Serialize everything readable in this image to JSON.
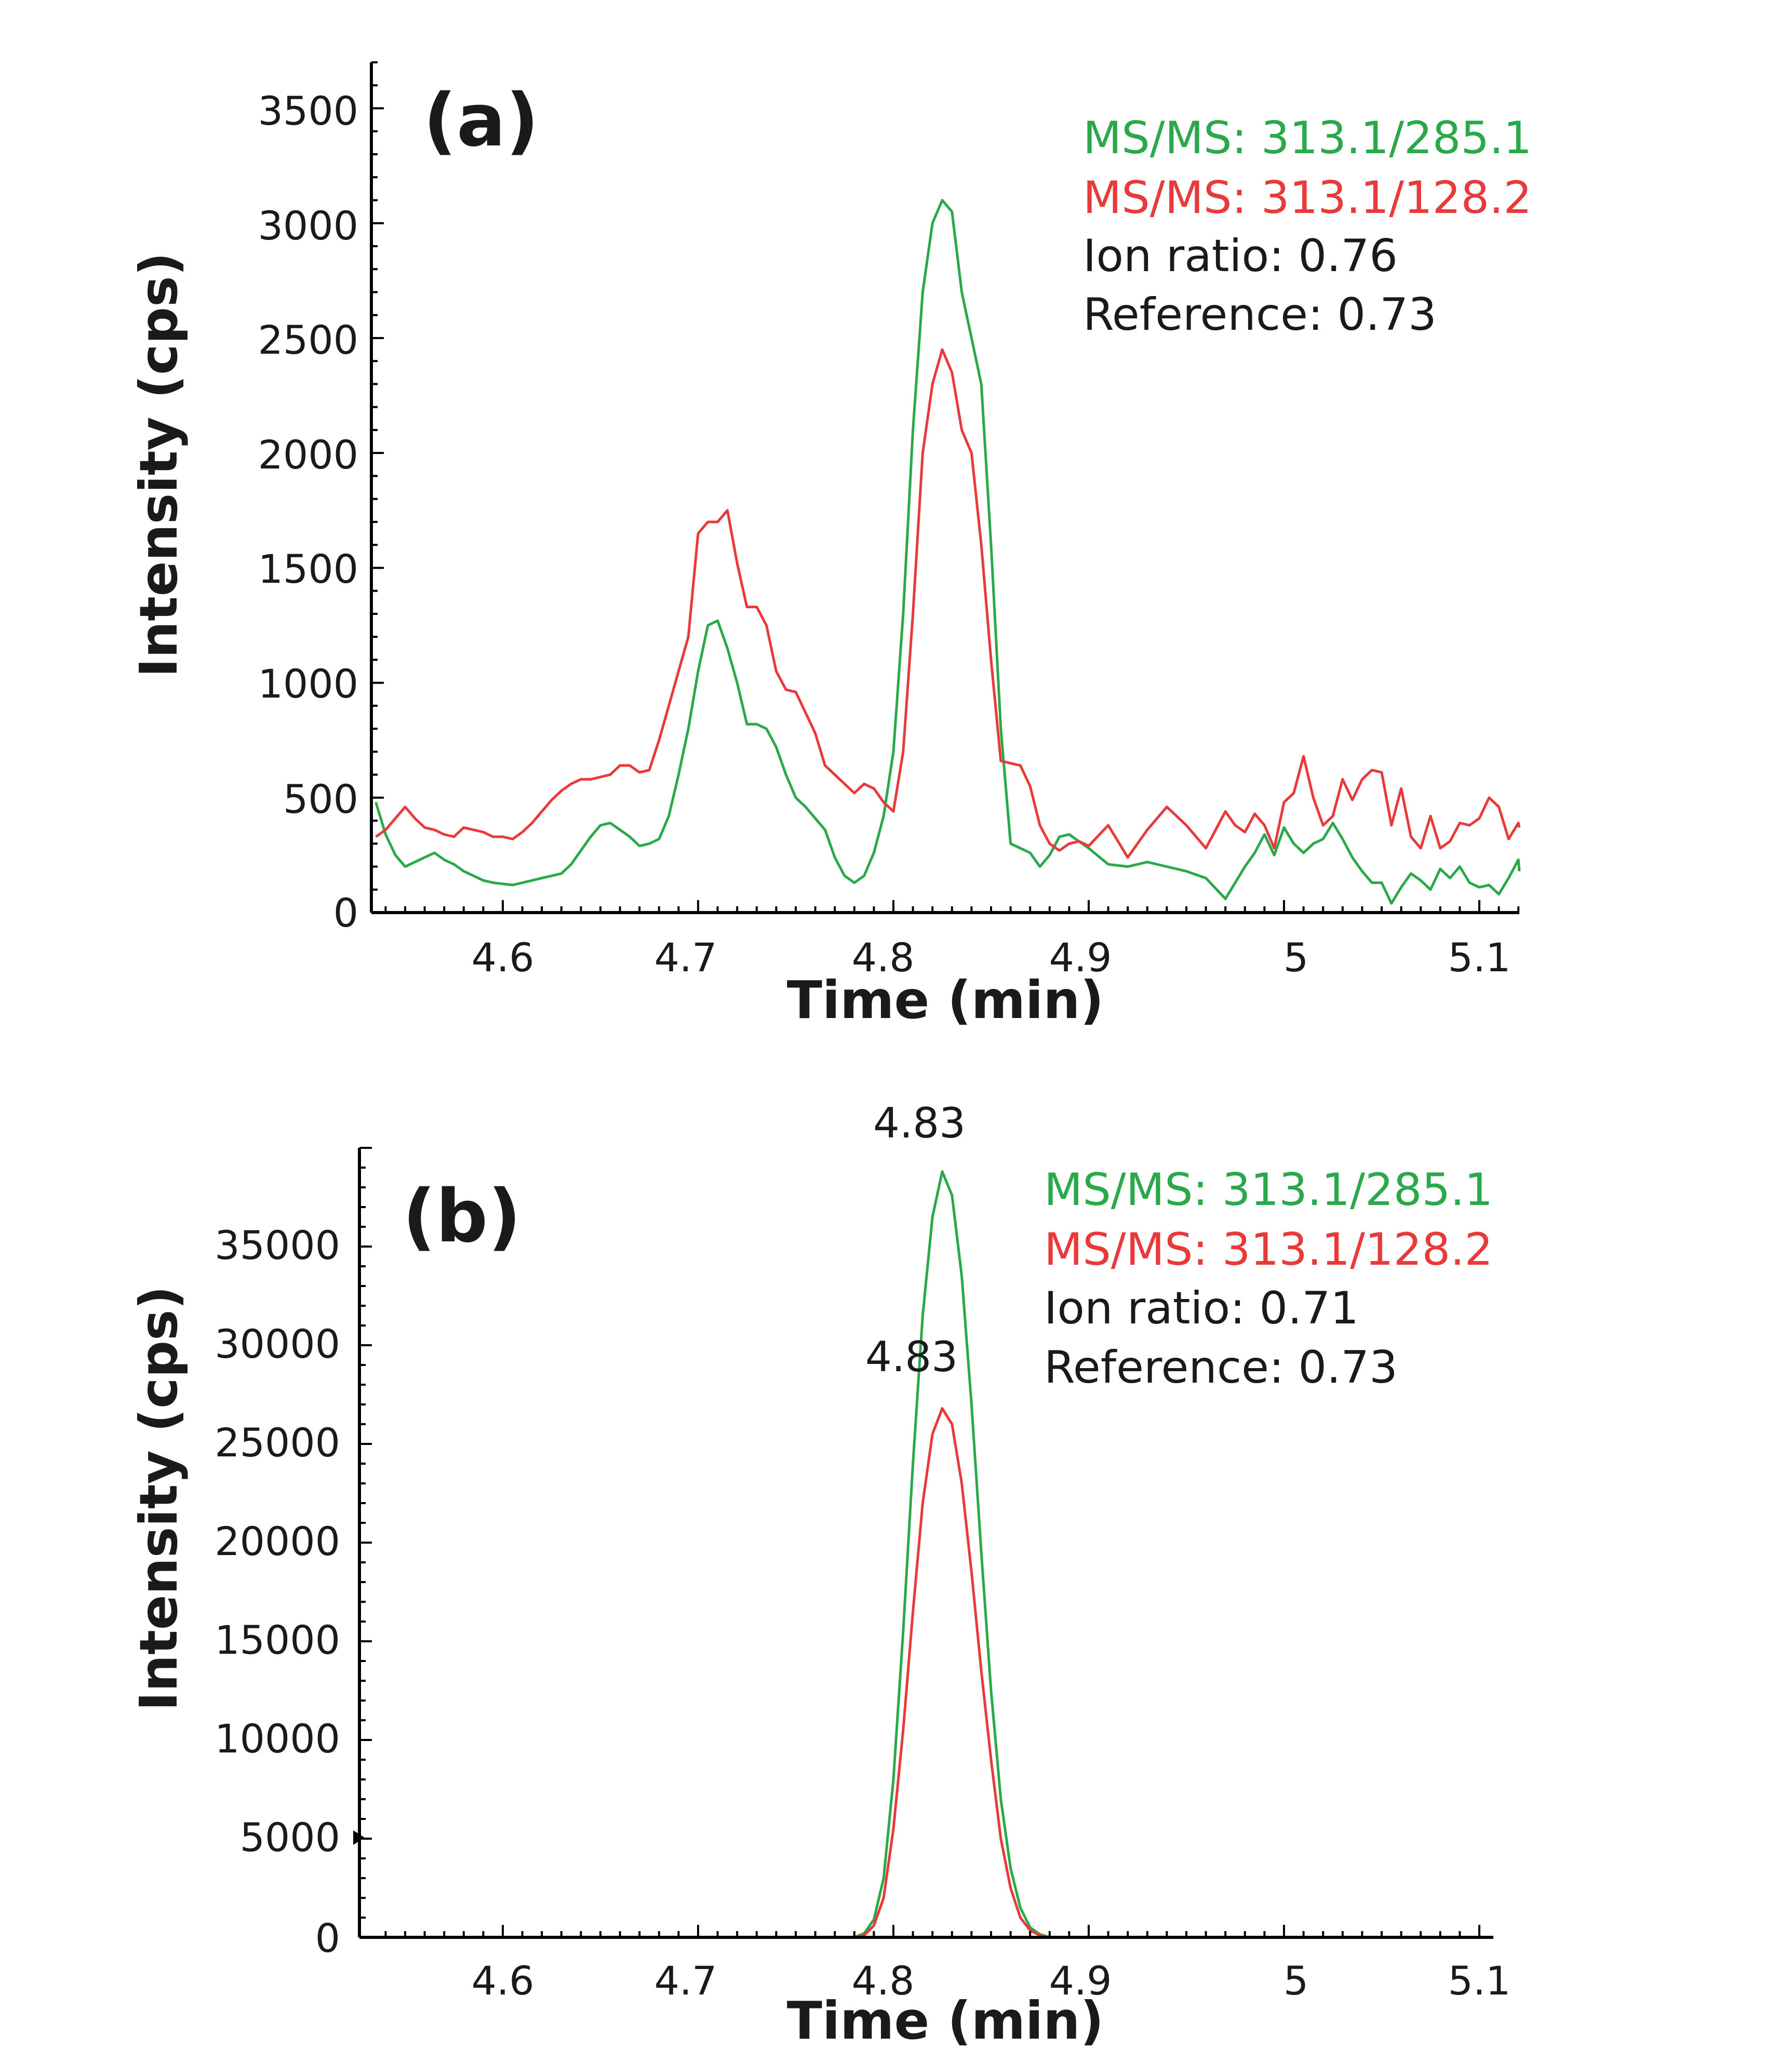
{
  "chart_data": [
    {
      "type": "line",
      "panel_label": "(a)",
      "xlabel": "Time (min)",
      "ylabel": "Intensity (cps)",
      "xlim": [
        4.535,
        5.125
      ],
      "ylim": [
        0,
        3700
      ],
      "xticks": [
        4.6,
        4.7,
        4.8,
        4.9,
        5.0,
        5.1
      ],
      "xtick_labels": [
        "4.6",
        "4.7",
        "4.8",
        "4.9",
        "5",
        "5.1"
      ],
      "yticks": [
        0,
        500,
        1000,
        1500,
        2000,
        2500,
        3000,
        3500
      ],
      "ytick_labels": [
        "0",
        "500",
        "1000",
        "1500",
        "2000",
        "2500",
        "3000",
        "3500"
      ],
      "legend": [
        {
          "text": "MS/MS: 313.1/285.1",
          "color": "#2aa84a"
        },
        {
          "text": "MS/MS: 313.1/128.2",
          "color": "#e83a3a"
        },
        {
          "text": "Ion ratio: 0.76",
          "color": "#1a1a1a"
        },
        {
          "text": "Reference: 0.73",
          "color": "#1a1a1a"
        }
      ],
      "series": [
        {
          "name": "MS/MS: 313.1/285.1",
          "color": "#2aa84a",
          "x": [
            4.535,
            4.54,
            4.545,
            4.55,
            4.555,
            4.56,
            4.565,
            4.57,
            4.575,
            4.58,
            4.585,
            4.59,
            4.595,
            4.6,
            4.605,
            4.61,
            4.615,
            4.62,
            4.625,
            4.63,
            4.635,
            4.64,
            4.645,
            4.65,
            4.655,
            4.66,
            4.665,
            4.67,
            4.675,
            4.68,
            4.685,
            4.69,
            4.695,
            4.7,
            4.705,
            4.71,
            4.715,
            4.72,
            4.725,
            4.73,
            4.735,
            4.74,
            4.745,
            4.75,
            4.755,
            4.76,
            4.765,
            4.77,
            4.775,
            4.78,
            4.785,
            4.79,
            4.795,
            4.8,
            4.805,
            4.81,
            4.815,
            4.82,
            4.825,
            4.83,
            4.835,
            4.84,
            4.845,
            4.85,
            4.855,
            4.86,
            4.865,
            4.87,
            4.875,
            4.88,
            4.885,
            4.89,
            4.895,
            4.9,
            4.91,
            4.92,
            4.93,
            4.94,
            4.95,
            4.96,
            4.97,
            4.975,
            4.98,
            4.985,
            4.99,
            4.995,
            5.0,
            5.005,
            5.01,
            5.015,
            5.02,
            5.025,
            5.03,
            5.035,
            5.04,
            5.045,
            5.05,
            5.055,
            5.06,
            5.065,
            5.07,
            5.075,
            5.08,
            5.085,
            5.09,
            5.095,
            5.1,
            5.105,
            5.11,
            5.115,
            5.12,
            5.125
          ],
          "y": [
            480,
            340,
            250,
            200,
            220,
            240,
            260,
            230,
            210,
            180,
            160,
            140,
            130,
            125,
            120,
            130,
            140,
            150,
            160,
            170,
            210,
            270,
            330,
            380,
            390,
            360,
            330,
            290,
            300,
            320,
            420,
            600,
            800,
            1050,
            1250,
            1270,
            1150,
            1000,
            820,
            820,
            800,
            720,
            600,
            500,
            460,
            410,
            360,
            240,
            160,
            130,
            160,
            260,
            420,
            700,
            1300,
            2100,
            2700,
            3000,
            3100,
            3050,
            2700,
            2500,
            2300,
            1600,
            800,
            300,
            280,
            260,
            200,
            250,
            330,
            340,
            310,
            280,
            210,
            200,
            220,
            200,
            180,
            150,
            60,
            130,
            200,
            260,
            340,
            250,
            370,
            300,
            260,
            300,
            320,
            390,
            320,
            240,
            180,
            130,
            130,
            40,
            110,
            170,
            140,
            100,
            190,
            150,
            200,
            130,
            110,
            120,
            80,
            150,
            230,
            180
          ]
        },
        {
          "name": "MS/MS: 313.1/128.2",
          "color": "#e83a3a",
          "x": [
            4.535,
            4.54,
            4.545,
            4.55,
            4.555,
            4.56,
            4.565,
            4.57,
            4.575,
            4.58,
            4.585,
            4.59,
            4.595,
            4.6,
            4.605,
            4.61,
            4.615,
            4.62,
            4.625,
            4.63,
            4.635,
            4.64,
            4.645,
            4.65,
            4.655,
            4.66,
            4.665,
            4.67,
            4.675,
            4.68,
            4.685,
            4.69,
            4.695,
            4.7,
            4.705,
            4.71,
            4.715,
            4.72,
            4.725,
            4.73,
            4.735,
            4.74,
            4.745,
            4.75,
            4.755,
            4.76,
            4.765,
            4.77,
            4.775,
            4.78,
            4.785,
            4.79,
            4.795,
            4.8,
            4.805,
            4.81,
            4.815,
            4.82,
            4.825,
            4.83,
            4.835,
            4.84,
            4.845,
            4.85,
            4.855,
            4.86,
            4.865,
            4.87,
            4.875,
            4.88,
            4.885,
            4.89,
            4.895,
            4.9,
            4.91,
            4.92,
            4.93,
            4.94,
            4.95,
            4.96,
            4.97,
            4.975,
            4.98,
            4.985,
            4.99,
            4.995,
            5.0,
            5.005,
            5.01,
            5.015,
            5.02,
            5.025,
            5.03,
            5.035,
            5.04,
            5.045,
            5.05,
            5.055,
            5.06,
            5.065,
            5.07,
            5.075,
            5.08,
            5.085,
            5.09,
            5.095,
            5.1,
            5.105,
            5.11,
            5.115,
            5.12,
            5.125
          ],
          "y": [
            330,
            360,
            410,
            460,
            410,
            370,
            360,
            340,
            330,
            370,
            360,
            350,
            330,
            330,
            320,
            350,
            390,
            440,
            490,
            530,
            560,
            580,
            580,
            590,
            600,
            640,
            640,
            610,
            620,
            750,
            900,
            1050,
            1200,
            1650,
            1700,
            1700,
            1750,
            1520,
            1330,
            1330,
            1250,
            1050,
            970,
            960,
            870,
            780,
            640,
            600,
            560,
            520,
            560,
            540,
            480,
            440,
            700,
            1300,
            2000,
            2300,
            2450,
            2350,
            2100,
            2000,
            1600,
            1100,
            660,
            650,
            640,
            550,
            380,
            300,
            270,
            300,
            310,
            290,
            380,
            240,
            360,
            460,
            380,
            280,
            440,
            380,
            350,
            430,
            380,
            280,
            480,
            520,
            680,
            500,
            380,
            420,
            580,
            490,
            580,
            620,
            610,
            380,
            540,
            330,
            280,
            420,
            280,
            310,
            390,
            380,
            410,
            500,
            460,
            320,
            390,
            370
          ]
        }
      ]
    },
    {
      "type": "line",
      "panel_label": "(b)",
      "xlabel": "Time (min)",
      "ylabel": "Intensity (cps)",
      "xlim": [
        4.535,
        5.125
      ],
      "ylim": [
        0,
        40000
      ],
      "xticks": [
        4.6,
        4.7,
        4.8,
        4.9,
        5.0,
        5.1
      ],
      "xtick_labels": [
        "4.6",
        "4.7",
        "4.8",
        "4.9",
        "5",
        "5.1"
      ],
      "yticks": [
        0,
        5000,
        10000,
        15000,
        20000,
        25000,
        30000,
        35000
      ],
      "ytick_labels": [
        "0",
        "5000",
        "10000",
        "15000",
        "20000",
        "25000",
        "30000",
        "35000"
      ],
      "legend": [
        {
          "text": "MS/MS: 313.1/285.1",
          "color": "#2aa84a"
        },
        {
          "text": "MS/MS: 313.1/128.2",
          "color": "#e83a3a"
        },
        {
          "text": "Ion ratio: 0.71",
          "color": "#1a1a1a"
        },
        {
          "text": "Reference: 0.73",
          "color": "#1a1a1a"
        }
      ],
      "annotations": [
        {
          "text": "4.83",
          "x": 4.83,
          "y": 38800
        },
        {
          "text": "4.83",
          "x": 4.83,
          "y": 26800
        }
      ],
      "series": [
        {
          "name": "MS/MS: 313.1/285.1",
          "color": "#2aa84a",
          "x": [
            4.535,
            4.6,
            4.7,
            4.78,
            4.785,
            4.79,
            4.795,
            4.8,
            4.805,
            4.81,
            4.815,
            4.82,
            4.825,
            4.83,
            4.835,
            4.84,
            4.845,
            4.85,
            4.855,
            4.86,
            4.865,
            4.87,
            4.875,
            4.88,
            4.9,
            5.0,
            5.125
          ],
          "y": [
            0,
            0,
            0,
            0,
            200,
            900,
            3000,
            8000,
            15500,
            24000,
            31500,
            36500,
            38800,
            37600,
            33500,
            27000,
            19500,
            12500,
            7000,
            3500,
            1500,
            500,
            150,
            0,
            0,
            0,
            0
          ]
        },
        {
          "name": "MS/MS: 313.1/128.2",
          "color": "#e83a3a",
          "x": [
            4.535,
            4.6,
            4.7,
            4.78,
            4.785,
            4.79,
            4.795,
            4.8,
            4.805,
            4.81,
            4.815,
            4.82,
            4.825,
            4.83,
            4.835,
            4.84,
            4.845,
            4.85,
            4.855,
            4.86,
            4.865,
            4.87,
            4.875,
            4.88,
            4.9,
            5.0,
            5.125
          ],
          "y": [
            0,
            0,
            0,
            0,
            100,
            600,
            2000,
            5500,
            10500,
            16500,
            22000,
            25500,
            26800,
            26000,
            23000,
            18500,
            13500,
            9000,
            5000,
            2500,
            1000,
            350,
            100,
            0,
            0,
            0,
            0
          ]
        }
      ]
    }
  ]
}
